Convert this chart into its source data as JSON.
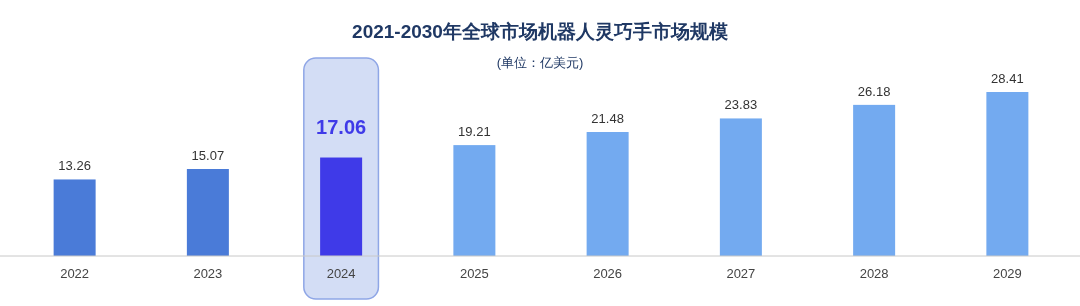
{
  "chart_data": {
    "type": "bar",
    "title": "2021-2030年全球市场机器人灵巧手市场规模",
    "subtitle": "(单位：亿美元)",
    "categories": [
      "2022",
      "2023",
      "2024",
      "2025",
      "2026",
      "2027",
      "2028",
      "2029"
    ],
    "values": [
      13.26,
      15.07,
      17.06,
      19.21,
      21.48,
      23.83,
      26.18,
      28.41
    ],
    "colors": [
      "#4a7bd8",
      "#4a7bd8",
      "#3f3ae8",
      "#73aaf0",
      "#73aaf0",
      "#73aaf0",
      "#73aaf0",
      "#73aaf0"
    ],
    "data_labels": true,
    "bands": [
      {
        "axis": "x",
        "from": "2024",
        "to": "2024",
        "color": "#d3ddf5"
      }
    ]
  }
}
